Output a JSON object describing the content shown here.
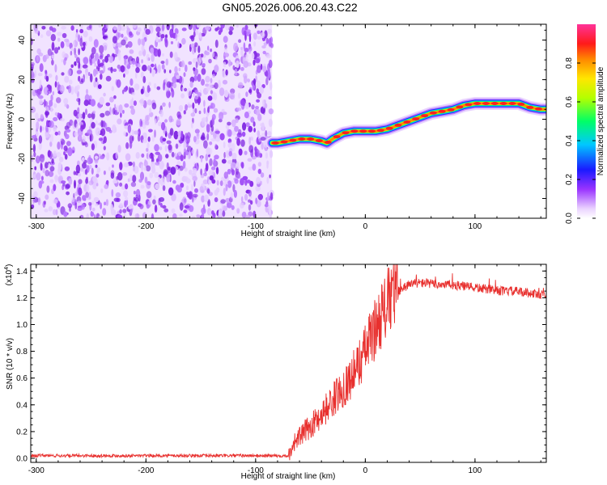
{
  "title": "GN05.2026.006.20.43.C22",
  "chart_data": [
    {
      "type": "heatmap",
      "xlabel": "Height of straight line (km)",
      "ylabel": "Frequency (Hz)",
      "xlim": [
        -305,
        165
      ],
      "ylim": [
        -50,
        48
      ],
      "xticks": [
        -300,
        -200,
        -100,
        0,
        100
      ],
      "xtick_labels": [
        "-300",
        "-200",
        "-100",
        "0",
        "100"
      ],
      "yticks": [
        -40,
        -20,
        0,
        20,
        40
      ],
      "ytick_labels": [
        "-40",
        "-20",
        "0",
        "20",
        "40"
      ],
      "noise_region": {
        "x_from": -305,
        "x_to": -85
      },
      "track": {
        "x": [
          -85,
          -80,
          -70,
          -60,
          -50,
          -40,
          -35,
          -30,
          -20,
          -10,
          0,
          10,
          20,
          30,
          40,
          50,
          60,
          70,
          80,
          90,
          100,
          110,
          120,
          130,
          140,
          150,
          160,
          165
        ],
        "y": [
          -12,
          -12,
          -11,
          -10,
          -10,
          -11,
          -12,
          -10,
          -7,
          -6,
          -6,
          -6,
          -5,
          -3,
          -1,
          1,
          3,
          4,
          5,
          7,
          8,
          8,
          8,
          8,
          8,
          6,
          5,
          5
        ]
      },
      "colorbar": {
        "label": "Normalized spectral amplitude",
        "range": [
          0,
          1
        ],
        "ticks": [
          0.0,
          0.2,
          0.4,
          0.6,
          0.8
        ],
        "tick_labels": [
          "0.0",
          "0.2",
          "0.4",
          "0.6",
          "0.8"
        ]
      }
    },
    {
      "type": "line",
      "xlabel": "Height of straight line (km)",
      "ylabel": "SNR (10 * v/v)",
      "multiplier": "(x10",
      "multiplier_exp": "4",
      "multiplier_close": ")",
      "xlim": [
        -305,
        165
      ],
      "ylim": [
        -0.03,
        1.45
      ],
      "xticks": [
        -300,
        -200,
        -100,
        0,
        100
      ],
      "xtick_labels": [
        "-300",
        "-200",
        "-100",
        "0",
        "100"
      ],
      "yticks": [
        0.0,
        0.2,
        0.4,
        0.6,
        0.8,
        1.0,
        1.2,
        1.4
      ],
      "ytick_labels": [
        "0.0",
        "0.2",
        "0.4",
        "0.6",
        "0.8",
        "1.0",
        "1.2",
        "1.4"
      ],
      "series": [
        {
          "name": "SNR",
          "color": "#e8302e",
          "envelope_x": [
            -305,
            -70,
            -65,
            -55,
            -45,
            -35,
            -25,
            -15,
            -5,
            5,
            15,
            25,
            35,
            45,
            55,
            65,
            75,
            85,
            95,
            105,
            115,
            125,
            135,
            145,
            155,
            165
          ],
          "envelope_y": [
            0.02,
            0.02,
            0.12,
            0.2,
            0.28,
            0.38,
            0.48,
            0.58,
            0.72,
            0.9,
            1.08,
            1.22,
            1.28,
            1.31,
            1.31,
            1.3,
            1.3,
            1.29,
            1.28,
            1.27,
            1.26,
            1.25,
            1.25,
            1.24,
            1.23,
            1.22
          ]
        }
      ]
    }
  ]
}
